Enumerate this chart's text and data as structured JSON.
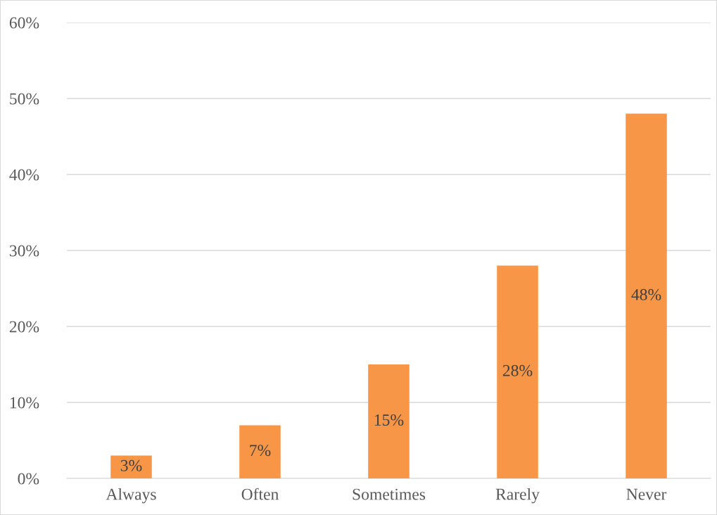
{
  "chart_data": {
    "type": "bar",
    "categories": [
      "Always",
      "Often",
      "Sometimes",
      "Rarely",
      "Never"
    ],
    "values": [
      3,
      7,
      15,
      28,
      48
    ],
    "value_labels": [
      "3%",
      "7%",
      "15%",
      "28%",
      "48%"
    ],
    "color": "#f79646",
    "ylim": [
      0,
      60
    ],
    "yticks": [
      {
        "value": 0,
        "label": "0%"
      },
      {
        "value": 10,
        "label": "10%"
      },
      {
        "value": 20,
        "label": "20%"
      },
      {
        "value": 30,
        "label": "30%"
      },
      {
        "value": 40,
        "label": "40%"
      },
      {
        "value": 50,
        "label": "50%"
      },
      {
        "value": 60,
        "label": "60%"
      }
    ],
    "grid": "y",
    "legend": false
  }
}
